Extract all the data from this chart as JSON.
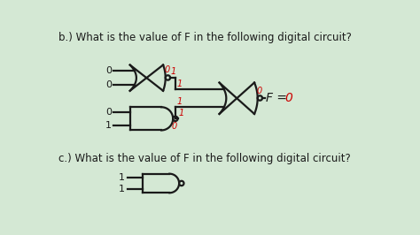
{
  "bg_color": "#d4e8d4",
  "title_b": "b.) What is the value of F in the following digital circuit?",
  "title_c": "c.) What is the value of F in the following digital circuit?",
  "title_fontsize": 8.5,
  "line_color": "#1a1a1a",
  "red_color": "#cc0000",
  "gate_lw": 1.6,
  "inputs_top_gate": [
    "0",
    "0"
  ],
  "inputs_bottom_gate": [
    "0",
    "1"
  ],
  "output_top_nand": "1",
  "output_bottom_nand_top": "1",
  "output_bottom_nand_bot": "0",
  "output_or_bubble": "0",
  "input_or_top": "1",
  "input_or_bottom": "1",
  "F_label_black": "F = ",
  "F_label_red": "0",
  "c_inputs": [
    "1",
    "1"
  ]
}
